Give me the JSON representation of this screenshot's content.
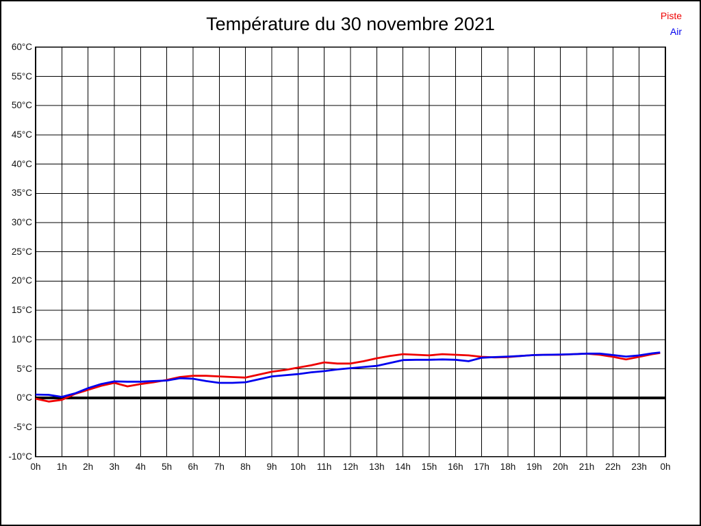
{
  "chart_data": {
    "type": "line",
    "title": "Température du 30 novembre 2021",
    "xlabel": "",
    "ylabel": "",
    "xlim": [
      0,
      24
    ],
    "ylim": [
      -10,
      60
    ],
    "grid": true,
    "zero_line": true,
    "legend_position": "top-right",
    "x_tick_labels": [
      "0h",
      "1h",
      "2h",
      "3h",
      "4h",
      "5h",
      "6h",
      "7h",
      "8h",
      "9h",
      "10h",
      "11h",
      "12h",
      "13h",
      "14h",
      "15h",
      "16h",
      "17h",
      "18h",
      "19h",
      "20h",
      "21h",
      "22h",
      "23h",
      "0h"
    ],
    "x_tick_hours": [
      0,
      1,
      2,
      3,
      4,
      5,
      6,
      7,
      8,
      9,
      10,
      11,
      12,
      13,
      14,
      15,
      16,
      17,
      18,
      19,
      20,
      21,
      22,
      23,
      24
    ],
    "y_tick_labels": [
      "60°C",
      "55°C",
      "50°C",
      "45°C",
      "40°C",
      "35°C",
      "30°C",
      "25°C",
      "20°C",
      "15°C",
      "10°C",
      "5°C",
      "0°C",
      "-5°C",
      "-10°C"
    ],
    "y_tick_values": [
      60,
      55,
      50,
      45,
      40,
      35,
      30,
      25,
      20,
      15,
      10,
      5,
      0,
      -5,
      -10
    ],
    "x": [
      0,
      0.5,
      1,
      1.5,
      2,
      2.5,
      3,
      3.5,
      4,
      4.5,
      5,
      5.5,
      6,
      6.5,
      7,
      7.5,
      8,
      8.5,
      9,
      9.5,
      10,
      10.5,
      11,
      11.5,
      12,
      12.5,
      13,
      13.5,
      14,
      14.5,
      15,
      15.5,
      16,
      16.5,
      17,
      17.5,
      18,
      18.5,
      19,
      19.5,
      20,
      20.5,
      21,
      21.5,
      22,
      22.5,
      23,
      23.5,
      23.8
    ],
    "series": [
      {
        "name": "Piste",
        "color": "#ee0000",
        "values": [
          -0.1,
          -0.6,
          -0.3,
          0.7,
          1.4,
          2.1,
          2.6,
          2.0,
          2.4,
          2.7,
          3.1,
          3.6,
          3.8,
          3.8,
          3.7,
          3.6,
          3.5,
          4.0,
          4.5,
          4.8,
          5.2,
          5.6,
          6.1,
          5.9,
          5.9,
          6.3,
          6.8,
          7.2,
          7.5,
          7.4,
          7.3,
          7.5,
          7.4,
          7.3,
          7.05,
          6.95,
          7.0,
          7.2,
          7.35,
          7.4,
          7.4,
          7.5,
          7.6,
          7.4,
          7.05,
          6.6,
          7.05,
          7.5,
          7.7
        ]
      },
      {
        "name": "Air",
        "color": "#0000ee",
        "values": [
          0.6,
          0.55,
          0.2,
          0.8,
          1.7,
          2.4,
          2.85,
          2.8,
          2.8,
          2.9,
          3.0,
          3.4,
          3.3,
          2.9,
          2.6,
          2.6,
          2.7,
          3.2,
          3.7,
          3.9,
          4.1,
          4.4,
          4.6,
          4.9,
          5.1,
          5.3,
          5.5,
          6.0,
          6.5,
          6.55,
          6.55,
          6.6,
          6.55,
          6.3,
          6.9,
          7.0,
          7.1,
          7.2,
          7.35,
          7.4,
          7.45,
          7.5,
          7.6,
          7.6,
          7.35,
          7.1,
          7.3,
          7.65,
          7.8
        ]
      }
    ],
    "colors": {
      "grid": "#000000",
      "zero_line": "#000000",
      "frame": "#000000",
      "title": "#000000",
      "tick_text": "#111111"
    }
  }
}
